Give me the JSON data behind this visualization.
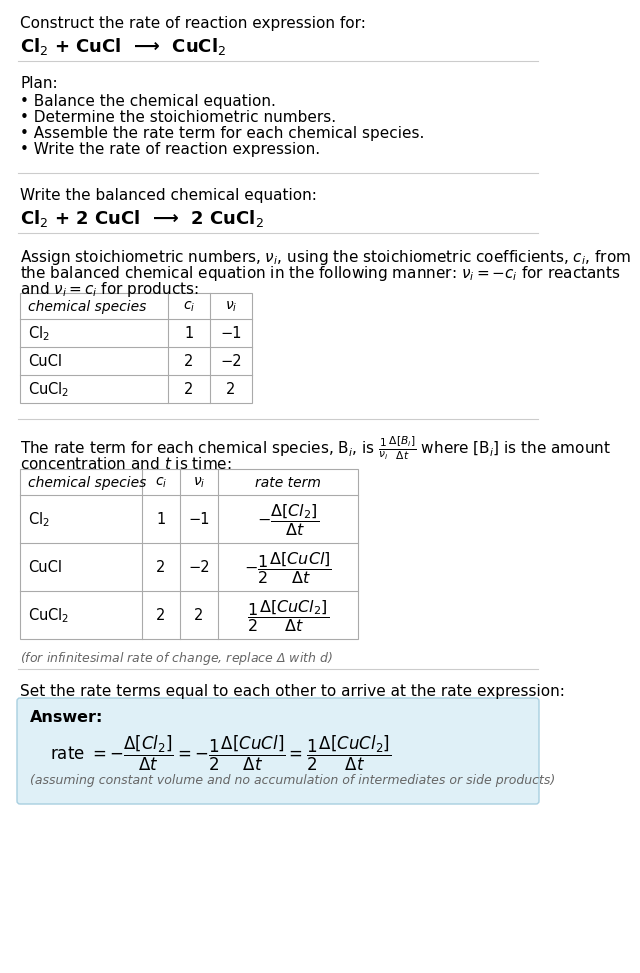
{
  "bg_color": "#ffffff",
  "text_color": "#000000",
  "gray_text": "#666666",
  "light_blue_bg": "#dff0f7",
  "light_blue_border": "#a8cfe0",
  "title_line": "Construct the rate of reaction expression for:",
  "reaction_unbalanced": "Cl$_2$ + CuCl  ⟶  CuCl$_2$",
  "plan_header": "Plan:",
  "plan_bullets": [
    "• Balance the chemical equation.",
    "• Determine the stoichiometric numbers.",
    "• Assemble the rate term for each chemical species.",
    "• Write the rate of reaction expression."
  ],
  "balanced_header": "Write the balanced chemical equation:",
  "balanced_eq": "Cl$_2$ + 2 CuCl  ⟶  2 CuCl$_2$",
  "stoich_line1": "Assign stoichiometric numbers, $\\nu_i$, using the stoichiometric coefficients, $c_i$, from",
  "stoich_line2": "the balanced chemical equation in the following manner: $\\nu_i = -c_i$ for reactants",
  "stoich_line3": "and $\\nu_i = c_i$ for products:",
  "table1_headers": [
    "chemical species",
    "$c_i$",
    "$\\nu_i$"
  ],
  "table1_rows": [
    [
      "Cl$_2$",
      "1",
      "−1"
    ],
    [
      "CuCl",
      "2",
      "−2"
    ],
    [
      "CuCl$_2$",
      "2",
      "2"
    ]
  ],
  "rate_line1": "The rate term for each chemical species, B$_i$, is $\\frac{1}{\\nu_i}\\frac{\\Delta[B_i]}{\\Delta t}$ where [B$_i$] is the amount",
  "rate_line2": "concentration and $t$ is time:",
  "table2_headers": [
    "chemical species",
    "$c_i$",
    "$\\nu_i$",
    "rate term"
  ],
  "table2_rows": [
    [
      "Cl$_2$",
      "1",
      "−1",
      "$-\\dfrac{\\Delta[Cl_2]}{\\Delta t}$"
    ],
    [
      "CuCl",
      "2",
      "−2",
      "$-\\dfrac{1}{2}\\dfrac{\\Delta[CuCl]}{\\Delta t}$"
    ],
    [
      "CuCl$_2$",
      "2",
      "2",
      "$\\dfrac{1}{2}\\dfrac{\\Delta[CuCl_2]}{\\Delta t}$"
    ]
  ],
  "infinitesimal_note": "(for infinitesimal rate of change, replace Δ with $d$)",
  "set_equal_text": "Set the rate terms equal to each other to arrive at the rate expression:",
  "answer_label": "Answer:",
  "answer_eq": "rate $= -\\dfrac{\\Delta[Cl_2]}{\\Delta t} = -\\dfrac{1}{2}\\dfrac{\\Delta[CuCl]}{\\Delta t} = \\dfrac{1}{2}\\dfrac{\\Delta[CuCl_2]}{\\Delta t}$",
  "assuming_text": "(assuming constant volume and no accumulation of intermediates or side products)"
}
